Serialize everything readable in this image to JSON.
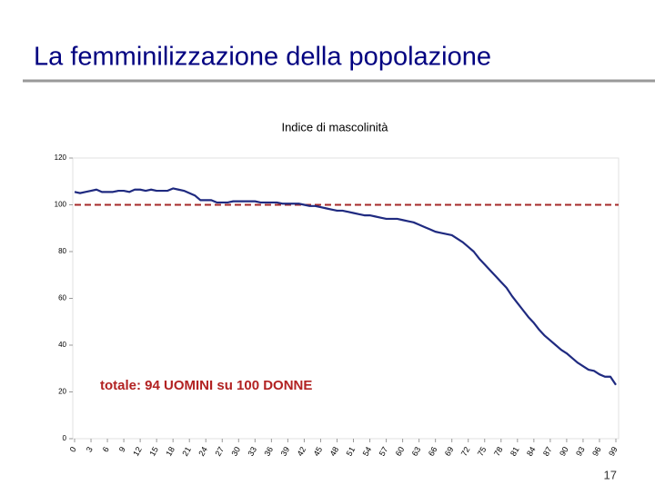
{
  "slide_title": "La femminilizzazione della popolazione",
  "page_number": 17,
  "chart_data": {
    "type": "line",
    "title": "Indice di mascolinità",
    "annotation": "totale: 94 UOMINI su 100 DONNE",
    "x": [
      0,
      1,
      2,
      3,
      4,
      5,
      6,
      7,
      8,
      9,
      10,
      11,
      12,
      13,
      14,
      15,
      16,
      17,
      18,
      19,
      20,
      21,
      22,
      23,
      24,
      25,
      26,
      27,
      28,
      29,
      30,
      31,
      32,
      33,
      34,
      35,
      36,
      37,
      38,
      39,
      40,
      41,
      42,
      43,
      44,
      45,
      46,
      47,
      48,
      49,
      50,
      51,
      52,
      53,
      54,
      55,
      56,
      57,
      58,
      59,
      60,
      61,
      62,
      63,
      64,
      65,
      66,
      67,
      68,
      69,
      70,
      71,
      72,
      73,
      74,
      75,
      76,
      77,
      78,
      79,
      80,
      81,
      82,
      83,
      84,
      85,
      86,
      87,
      88,
      89,
      90,
      91,
      92,
      93,
      94,
      95,
      96,
      97,
      98,
      99
    ],
    "series": [
      {
        "name": "Indice di mascolinità",
        "color": "#1f2a80",
        "values": [
          105.5,
          105,
          105.5,
          106,
          106.5,
          105.5,
          105.5,
          105.5,
          106,
          106,
          105.5,
          106.5,
          106.5,
          106,
          106.5,
          106,
          106,
          106,
          107,
          106.5,
          106,
          105,
          104,
          102,
          102,
          102,
          101,
          101,
          101,
          101.5,
          101.5,
          101.5,
          101.5,
          101.5,
          101,
          101,
          101,
          101,
          100.5,
          100.5,
          100.5,
          100.5,
          100,
          99.5,
          99.5,
          99,
          98.5,
          98,
          97.5,
          97.5,
          97,
          96.5,
          96,
          95.5,
          95.5,
          95,
          94.5,
          94,
          94,
          94,
          93.5,
          93,
          92.5,
          91.5,
          90.5,
          89.5,
          88.5,
          88,
          87.5,
          87,
          85.5,
          84,
          82,
          80,
          77,
          74.5,
          72,
          69.5,
          67,
          64.5,
          61,
          58,
          55,
          52,
          49.5,
          46.5,
          44,
          42,
          40,
          38,
          36.5,
          34.5,
          32.5,
          31,
          29.5,
          29,
          27.5,
          26.5,
          26.5,
          23
        ]
      }
    ],
    "reference_line": {
      "value": 100,
      "color": "#a52a2a",
      "dashed": true
    },
    "xlim": [
      0,
      99
    ],
    "xticks": [
      0,
      3,
      6,
      9,
      12,
      15,
      18,
      21,
      24,
      27,
      30,
      33,
      36,
      39,
      42,
      45,
      48,
      51,
      54,
      57,
      60,
      63,
      66,
      69,
      72,
      75,
      78,
      81,
      84,
      87,
      90,
      93,
      96,
      99
    ],
    "ylim": [
      0,
      120
    ],
    "yticks": [
      0,
      20,
      40,
      60,
      80,
      100,
      120
    ],
    "annotation_color": "#b22222"
  }
}
